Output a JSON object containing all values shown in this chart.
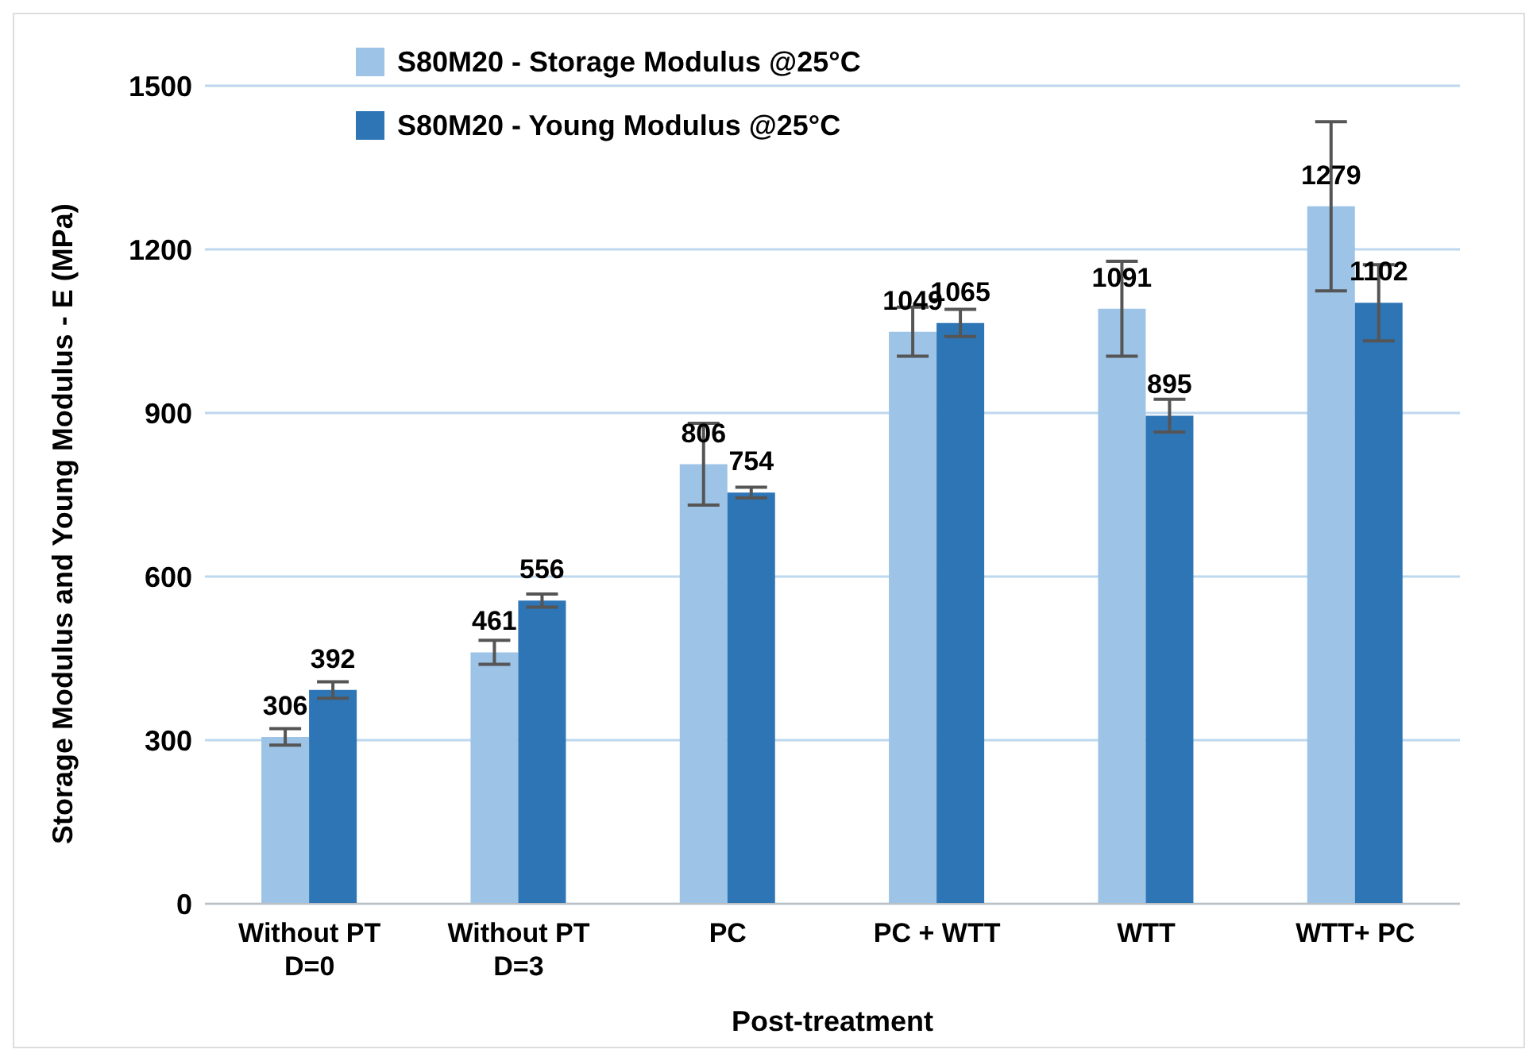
{
  "chart_data": {
    "type": "bar",
    "xlabel": "Post-treatment",
    "ylabel": "Storage Modulus and Young Modulus - E (MPa)",
    "categories": [
      "Without PT\nD=0",
      "Without PT\nD=3",
      "PC",
      "PC + WTT",
      "WTT",
      "WTT+ PC"
    ],
    "series": [
      {
        "name": "S80M20 - Storage Modulus @25°C",
        "color": "#9dc3e6",
        "values": [
          306,
          461,
          806,
          1049,
          1091,
          1279
        ],
        "errors": [
          15,
          22,
          75,
          45,
          87,
          155
        ]
      },
      {
        "name": "S80M20 - Young Modulus @25°C",
        "color": "#2e75b6",
        "values": [
          392,
          556,
          754,
          1065,
          895,
          1102
        ],
        "errors": [
          15,
          12,
          10,
          25,
          30,
          70
        ]
      }
    ],
    "ylim": [
      0,
      1500
    ],
    "yticks": [
      0,
      300,
      600,
      900,
      1200,
      1500
    ],
    "grid": "y",
    "legend": "top left",
    "data_labels": true
  }
}
